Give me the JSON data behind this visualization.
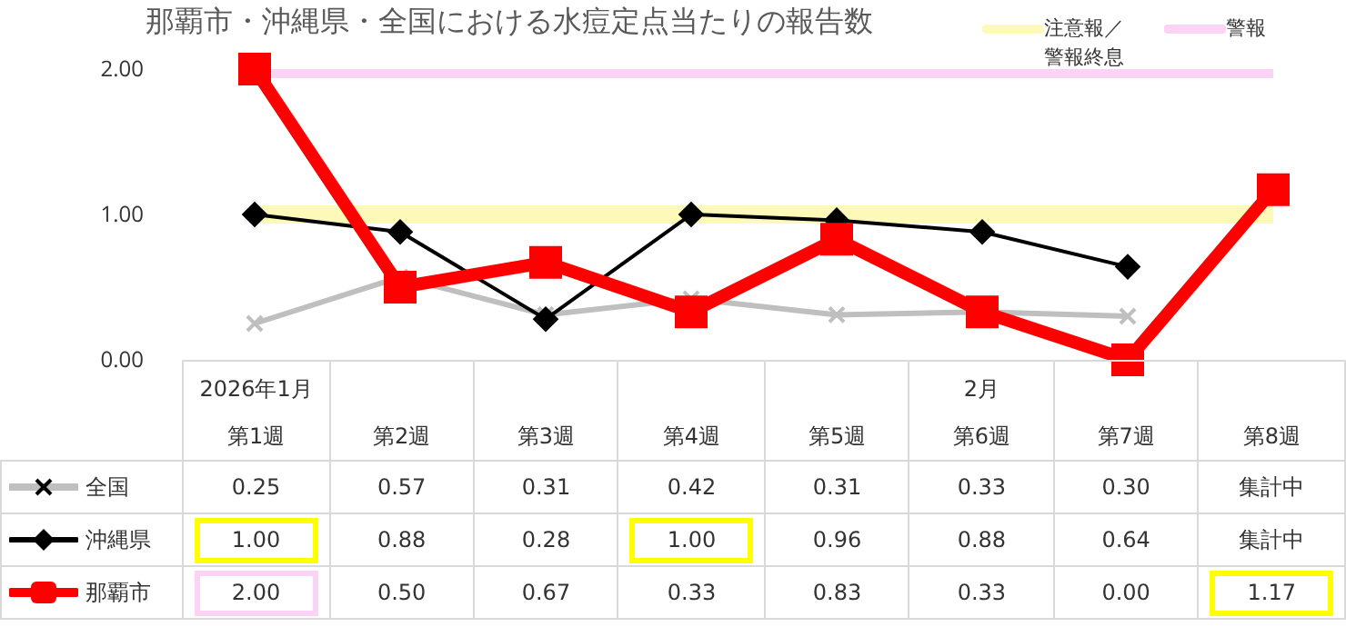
{
  "chart_data": {
    "type": "line",
    "title": "那覇市・沖縄県・全国における水痘定点当たりの報告数",
    "categories": [
      "2026年1月第1週",
      "第2週",
      "第3週",
      "第4週",
      "第5週",
      "2月第6週",
      "第7週",
      "第8週"
    ],
    "series": [
      {
        "name": "全国",
        "color": "#bfbfbf",
        "marker": "cross",
        "values": [
          0.25,
          0.57,
          0.31,
          0.42,
          0.31,
          0.33,
          0.3,
          null
        ],
        "value_labels": [
          "0.25",
          "0.57",
          "0.31",
          "0.42",
          "0.31",
          "0.33",
          "0.30",
          "集計中"
        ]
      },
      {
        "name": "沖縄県",
        "color": "#000000",
        "marker": "diamond",
        "values": [
          1.0,
          0.88,
          0.28,
          1.0,
          0.96,
          0.88,
          0.64,
          null
        ],
        "value_labels": [
          "1.00",
          "0.88",
          "0.28",
          "1.00",
          "0.96",
          "0.88",
          "0.64",
          "集計中"
        ]
      },
      {
        "name": "那覇市",
        "color": "#ff0000",
        "marker": "square",
        "values": [
          2.0,
          0.5,
          0.67,
          0.33,
          0.83,
          0.33,
          0.0,
          1.17
        ],
        "value_labels": [
          "2.00",
          "0.50",
          "0.67",
          "0.33",
          "0.83",
          "0.33",
          "0.00",
          "1.17"
        ]
      }
    ],
    "ylim": [
      0,
      2
    ],
    "yticks": [
      {
        "value": 0,
        "label": "0.00"
      },
      {
        "value": 1,
        "label": "1.00"
      },
      {
        "value": 2,
        "label": "2.00"
      }
    ],
    "legend": "bottom left",
    "ref_lines": [
      {
        "axis": "y",
        "value": 1,
        "label": "注意報／警報終息",
        "color": "#fdf9b8"
      },
      {
        "axis": "y",
        "value": 2,
        "label": "警報",
        "color": "#fbd3f5"
      }
    ]
  }
}
